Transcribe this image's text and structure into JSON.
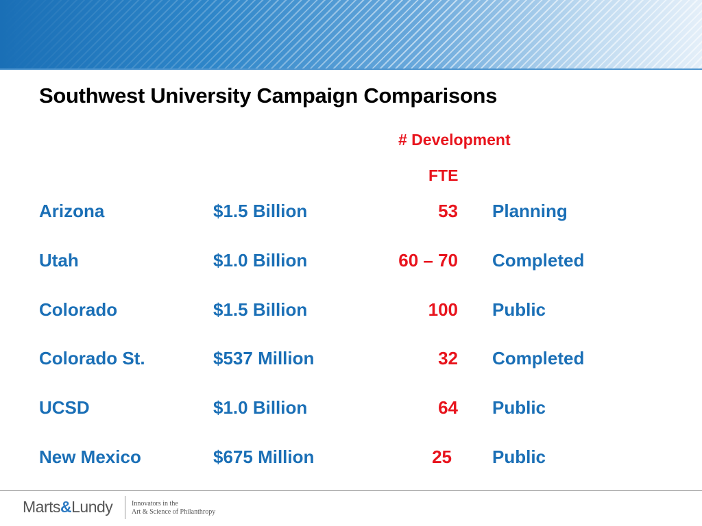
{
  "slide": {
    "title": "Southwest University Campaign Comparisons",
    "fte_header_line1": "# Development",
    "fte_header_line2": "FTE",
    "rows": [
      {
        "school": "Arizona",
        "amount": "$1.5 Billion",
        "fte": "53",
        "status": "Planning"
      },
      {
        "school": "Utah",
        "amount": "$1.0 Billion",
        "fte": "60 – 70",
        "status": "Completed"
      },
      {
        "school": "Colorado",
        "amount": "$1.5 Billion",
        "fte": "100",
        "status": "Public"
      },
      {
        "school": "Colorado St.",
        "amount": "$537 Million",
        "fte": "32",
        "status": "Completed"
      },
      {
        "school": "UCSD",
        "amount": "$1.0 Billion",
        "fte": "64",
        "status": "Public"
      },
      {
        "school": "New Mexico",
        "amount": "$675 Million",
        "fte": "25",
        "status": "Public"
      }
    ]
  },
  "footer": {
    "logo_part1": "Marts",
    "logo_amp": "&",
    "logo_part2": "Lundy",
    "tagline_line1": "Innovators in the",
    "tagline_line2": "Art & Science of Philanthropy"
  },
  "colors": {
    "accent_blue": "#1a6fb6",
    "accent_red": "#e8141d",
    "title_black": "#000000"
  }
}
